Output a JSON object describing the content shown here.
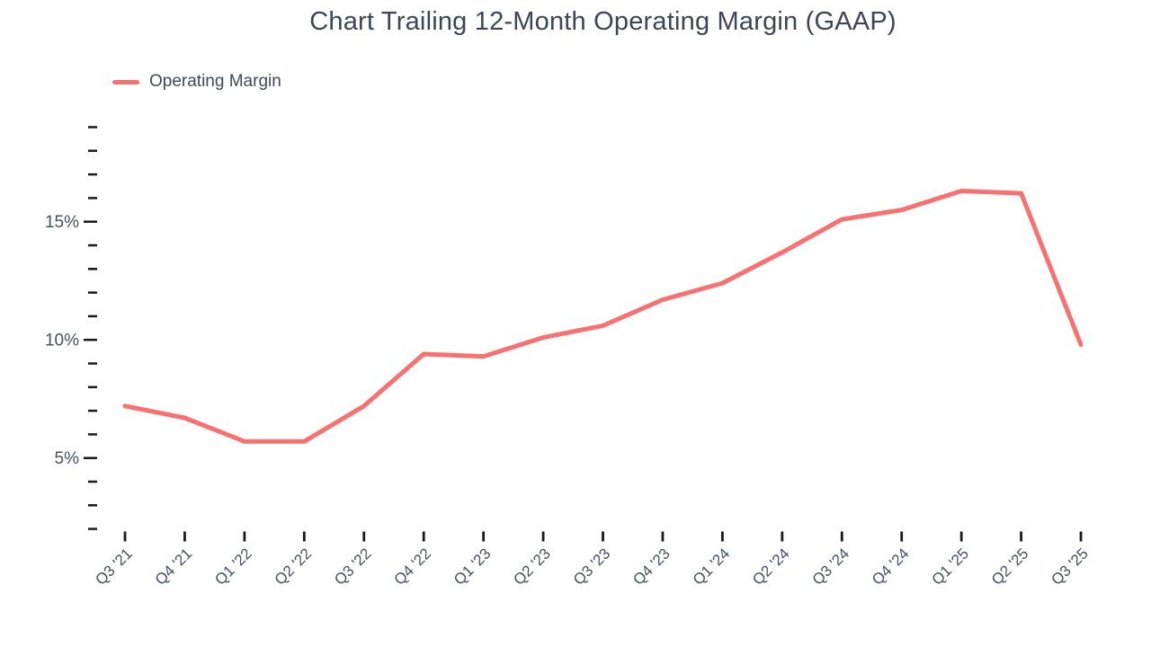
{
  "chart_data": {
    "type": "line",
    "title": "Chart Trailing 12-Month Operating Margin (GAAP)",
    "xlabel": "",
    "ylabel": "",
    "grid": false,
    "legend_position": "top-left",
    "legend": [
      {
        "label": "Operating Margin",
        "color": "#f97070"
      }
    ],
    "categories": [
      "Q3 '21",
      "Q4 '21",
      "Q1 '22",
      "Q2 '22",
      "Q3 '22",
      "Q4 '22",
      "Q1 '23",
      "Q2 '23",
      "Q3 '23",
      "Q4 '23",
      "Q1 '24",
      "Q2 '24",
      "Q3 '24",
      "Q4 '24",
      "Q1 '25",
      "Q2 '25",
      "Q3 '25"
    ],
    "series": [
      {
        "name": "Operating Margin",
        "values": [
          7.2,
          6.7,
          5.7,
          5.7,
          7.2,
          9.4,
          9.3,
          10.1,
          10.6,
          11.7,
          12.4,
          13.7,
          15.1,
          15.5,
          16.3,
          16.2,
          9.8
        ]
      }
    ],
    "y_axis": {
      "range": [
        2,
        19
      ],
      "minor_tick_step": 1,
      "major_ticks": [
        5,
        10,
        15
      ],
      "tick_labels": [
        "5%",
        "10%",
        "15%"
      ],
      "label_format": "percent"
    },
    "colors": {
      "line": "#f97070",
      "title_text": "#3c4656",
      "axis_text": "#465163",
      "tick_mark": "#16191e"
    }
  }
}
